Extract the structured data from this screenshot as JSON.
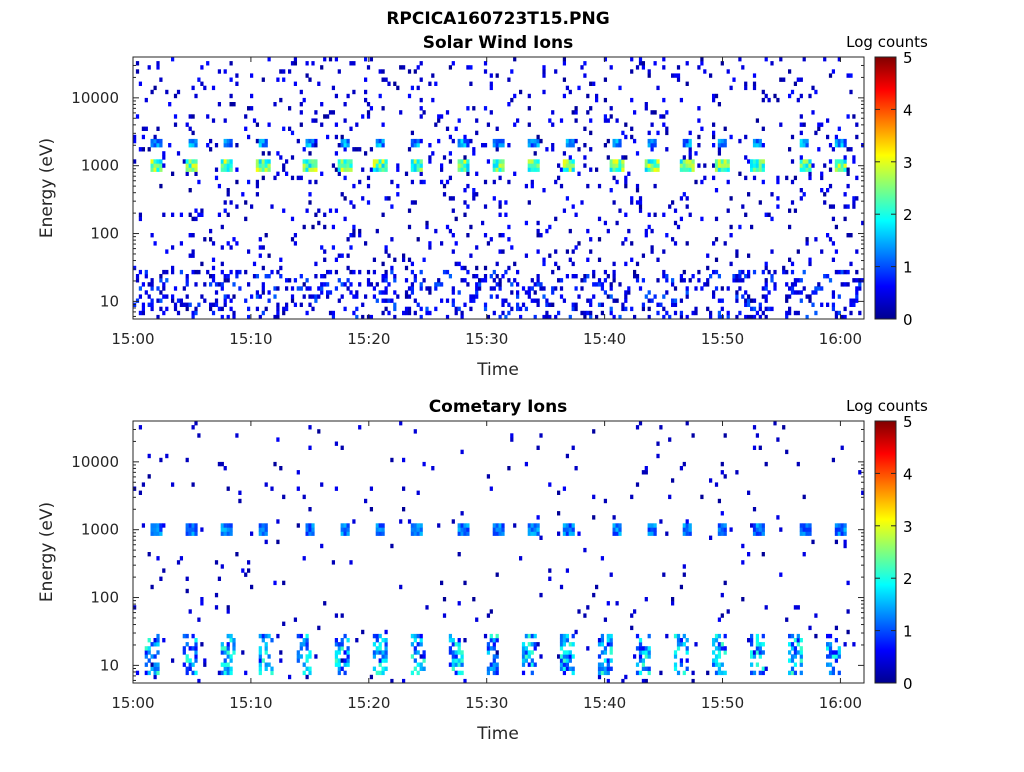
{
  "title": "RPCICA160723T15.PNG",
  "colorbar_label": "Log counts",
  "colorbar_ticks": [
    "0",
    "1",
    "2",
    "3",
    "4",
    "5"
  ],
  "chart_data": [
    {
      "type": "heatmap",
      "title": "Solar Wind Ions",
      "xlabel": "Time",
      "ylabel": "Energy (eV)",
      "x_ticks": [
        "15:00",
        "15:10",
        "15:20",
        "15:30",
        "15:40",
        "15:50",
        "16:00"
      ],
      "y_ticks": [
        "10",
        "100",
        "1000",
        "10000"
      ],
      "y_scale": "log",
      "ylim": [
        5.5,
        40000
      ],
      "xlim": [
        "15:00",
        "16:02"
      ],
      "colorbar_range": [
        0,
        5
      ],
      "features": [
        {
          "description": "periodic bursts near 1000 eV",
          "energy": 1000,
          "peak_log_counts": 3,
          "times": [
            "15:02",
            "15:05",
            "15:08",
            "15:11",
            "15:15",
            "15:18",
            "15:21",
            "15:24",
            "15:28",
            "15:31",
            "15:34",
            "15:37",
            "15:41",
            "15:44",
            "15:47",
            "15:50",
            "15:53",
            "15:57",
            "16:00"
          ]
        },
        {
          "description": "secondary bursts near 2200 eV",
          "energy": 2200,
          "peak_log_counts": 1.5
        }
      ]
    },
    {
      "type": "heatmap",
      "title": "Cometary Ions",
      "xlabel": "Time",
      "ylabel": "Energy (eV)",
      "x_ticks": [
        "15:00",
        "15:10",
        "15:20",
        "15:30",
        "15:40",
        "15:50",
        "16:00"
      ],
      "y_ticks": [
        "10",
        "100",
        "1000",
        "10000"
      ],
      "y_scale": "log",
      "ylim": [
        5.5,
        40000
      ],
      "xlim": [
        "15:00",
        "16:02"
      ],
      "colorbar_range": [
        0,
        5
      ],
      "features": [
        {
          "description": "periodic bursts near 1000 eV",
          "energy": 1000,
          "peak_log_counts": 1.5
        },
        {
          "description": "periodic low-energy bursts",
          "energy_range": [
            8,
            30
          ],
          "peak_log_counts": 2
        }
      ]
    }
  ]
}
